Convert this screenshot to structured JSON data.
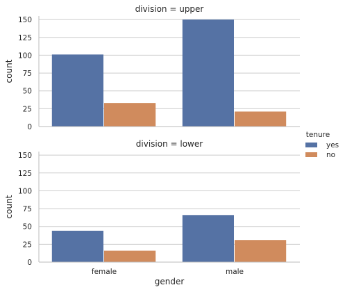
{
  "chart_data": {
    "type": "bar",
    "colors": {
      "yes": "#5572a4",
      "no": "#d08b5d",
      "grid": "#cccccc",
      "spine": "#bbbbbb"
    },
    "x_label": "gender",
    "y_label": "count",
    "ylim": [
      0,
      155
    ],
    "y_ticks": [
      "0",
      "25",
      "50",
      "75",
      "100",
      "125",
      "150"
    ],
    "categories": [
      "female",
      "male"
    ],
    "legend": {
      "title": "tenure",
      "position": "right",
      "items": [
        "yes",
        "no"
      ]
    },
    "grid": "horizontal",
    "panels": [
      {
        "title": "division = upper",
        "series": [
          {
            "name": "yes",
            "values": [
              101,
              150
            ]
          },
          {
            "name": "no",
            "values": [
              33,
              21
            ]
          }
        ]
      },
      {
        "title": "division = lower",
        "series": [
          {
            "name": "yes",
            "values": [
              44,
              66
            ]
          },
          {
            "name": "no",
            "values": [
              16,
              31
            ]
          }
        ]
      }
    ]
  }
}
